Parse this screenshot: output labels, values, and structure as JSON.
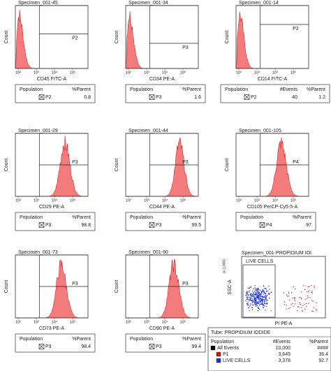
{
  "panels": [
    {
      "title": "Specimen_001-45",
      "x_label": "CD45 FITC-A",
      "gate": "P2",
      "table": {
        "headers": [
          "Population",
          "%Parent"
        ],
        "rows": [
          [
            "P2",
            "0.8"
          ]
        ]
      }
    },
    {
      "title": "Specimen_001-34",
      "x_label": "CD34 PE-A",
      "gate": "P3",
      "table": {
        "headers": [
          "Population",
          "%Parent"
        ],
        "rows": [
          [
            "P3",
            "1.6"
          ]
        ]
      }
    },
    {
      "title": "Specimen_001-14",
      "x_label": "CD14 FITC-A",
      "gate": "P2",
      "table": {
        "headers": [
          "Population",
          "#Events",
          "%Parent"
        ],
        "rows": [
          [
            "P2",
            "40",
            "1.2"
          ]
        ]
      }
    },
    {
      "title": "Specimen_001-29",
      "x_label": "CD29 PE-A",
      "gate": "P3",
      "table": {
        "headers": [
          "Population",
          "%Parent"
        ],
        "rows": [
          [
            "P3",
            "98.8"
          ]
        ]
      }
    },
    {
      "title": "Specimen_001-44",
      "x_label": "CD44 PE-A",
      "gate": "P3",
      "table": {
        "headers": [
          "Population",
          "%Parent"
        ],
        "rows": [
          [
            "P3",
            "99.5"
          ]
        ]
      }
    },
    {
      "title": "Specimen_001-105",
      "x_label": "CD105 PerCP-Cy5-5-A",
      "gate": "P4",
      "table": {
        "headers": [
          "Population",
          "%Parent"
        ],
        "rows": [
          [
            "P4",
            "97"
          ]
        ]
      }
    },
    {
      "title": "Specimen_001-73",
      "x_label": "CD73 PE-A",
      "gate": "P3",
      "table": {
        "headers": [
          "Population",
          "%Parent"
        ],
        "rows": [
          [
            "P3",
            "98.4"
          ]
        ]
      }
    },
    {
      "title": "Specimen_001-90",
      "x_label": "CD90 PE-A",
      "gate": "P3",
      "table": {
        "headers": [
          "Population",
          "%Parent"
        ],
        "rows": [
          [
            "P3",
            "99.4"
          ]
        ]
      }
    }
  ],
  "count_label": "Count",
  "x_ticks": [
    "10²",
    "10³",
    "10⁴",
    "10⁵"
  ],
  "scatter_panel": {
    "title": "Specimen_001-PROPIDIUM IOI",
    "y_label": "SSC-A",
    "y_unit": "(x 1,000)",
    "x_label": "PI PE-A",
    "gate": "LIVE CELLS",
    "tube": "Tube:  PROPIDIUM IODIDE",
    "table": {
      "headers": [
        "Population",
        "#Events",
        "%Parent"
      ],
      "rows": [
        [
          "All Events",
          "10,000",
          "####"
        ],
        [
          "P1",
          "3,645",
          "36.4"
        ],
        [
          "LIVE CELLS",
          "3,378",
          "92.7"
        ]
      ]
    }
  }
}
